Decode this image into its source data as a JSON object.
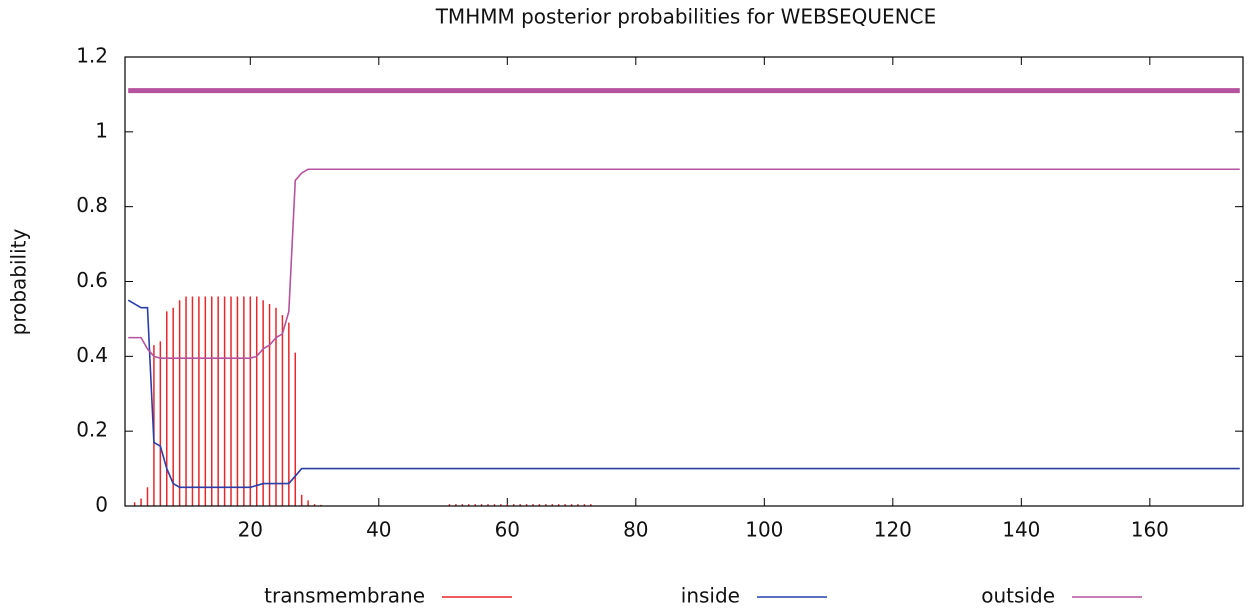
{
  "chart_data": {
    "type": "line",
    "title": "TMHMM posterior probabilities for WEBSEQUENCE",
    "y_label": "probability",
    "xlim": [
      0.5,
      174.5
    ],
    "ylim": [
      0,
      1.2
    ],
    "xticks": [
      20,
      40,
      60,
      80,
      100,
      120,
      140,
      160
    ],
    "yticks": [
      0,
      0.2,
      0.4,
      0.6,
      0.8,
      1,
      1.2
    ],
    "legend": "bottom",
    "series": [
      {
        "name": "transmembrane",
        "color": "#e8262b",
        "style": "impulses",
        "x": [
          1,
          2,
          3,
          4,
          5,
          6,
          7,
          8,
          9,
          10,
          11,
          12,
          13,
          14,
          15,
          16,
          17,
          18,
          19,
          20,
          21,
          22,
          23,
          24,
          25,
          26,
          27,
          28,
          29,
          30,
          31,
          51,
          52,
          53,
          54,
          55,
          56,
          57,
          58,
          59,
          60,
          61,
          62,
          63,
          64,
          65,
          66,
          67,
          68,
          69,
          70,
          71,
          72,
          73
        ],
        "values": [
          0,
          0.01,
          0.02,
          0.05,
          0.43,
          0.44,
          0.52,
          0.53,
          0.55,
          0.56,
          0.56,
          0.56,
          0.56,
          0.56,
          0.56,
          0.56,
          0.56,
          0.56,
          0.56,
          0.56,
          0.56,
          0.55,
          0.54,
          0.53,
          0.51,
          0.49,
          0.41,
          0.03,
          0.015,
          0.005,
          0.003,
          0.005,
          0.005,
          0.005,
          0.005,
          0.005,
          0.005,
          0.005,
          0.005,
          0.005,
          0.005,
          0.005,
          0.005,
          0.005,
          0.005,
          0.005,
          0.005,
          0.005,
          0.005,
          0.005,
          0.005,
          0.005,
          0.005,
          0.005
        ]
      },
      {
        "name": "inside",
        "color": "#2b3ea8",
        "style": "line",
        "x": [
          1,
          2,
          3,
          4,
          5,
          6,
          7,
          8,
          9,
          20,
          21,
          22,
          26,
          27,
          28,
          174
        ],
        "values": [
          0.55,
          0.54,
          0.53,
          0.53,
          0.17,
          0.16,
          0.1,
          0.06,
          0.05,
          0.05,
          0.055,
          0.06,
          0.06,
          0.08,
          0.1,
          0.1
        ]
      },
      {
        "name": "outside",
        "color": "#b5539f",
        "style": "line",
        "x": [
          1,
          2,
          3,
          4,
          5,
          6,
          20,
          21,
          22,
          23,
          24,
          25,
          26,
          27,
          28,
          29,
          174
        ],
        "values": [
          0.45,
          0.45,
          0.45,
          0.42,
          0.4,
          0.395,
          0.395,
          0.4,
          0.42,
          0.43,
          0.45,
          0.46,
          0.52,
          0.87,
          0.89,
          0.9,
          0.9
        ]
      }
    ],
    "topology": [
      {
        "y": 1.11,
        "x": [
          1,
          174
        ],
        "color": "#b5539f"
      }
    ]
  }
}
